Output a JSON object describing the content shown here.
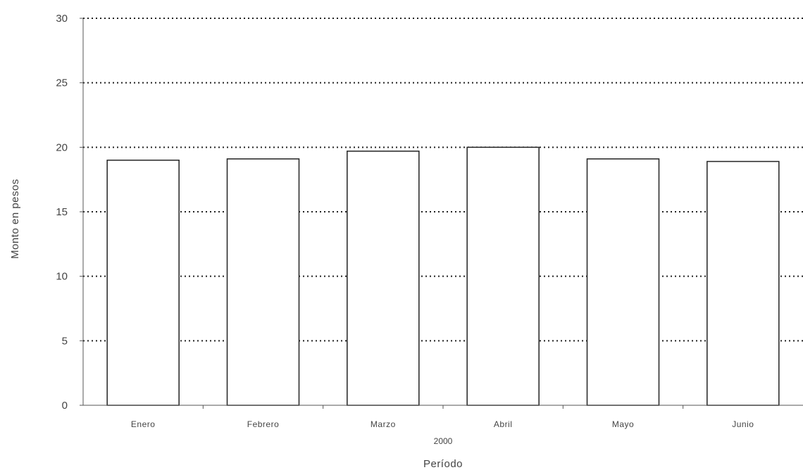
{
  "chart_data": {
    "type": "bar",
    "categories": [
      "Enero",
      "Febrero",
      "Marzo",
      "Abril",
      "Mayo",
      "Junio"
    ],
    "values": [
      19.0,
      19.1,
      19.7,
      20.0,
      19.1,
      18.9
    ],
    "category_group_label": "2000",
    "xlabel": "Período",
    "ylabel": "Monto en pesos",
    "ylim": [
      0,
      30
    ],
    "yticks": [
      0,
      5,
      10,
      15,
      20,
      25,
      30
    ],
    "grid": "dotted-horizontal",
    "legend": "none",
    "colors": {
      "bar_fill": "#ffffff",
      "bar_stroke": "#222222",
      "grid": "#222222",
      "axis": "#555555"
    }
  }
}
